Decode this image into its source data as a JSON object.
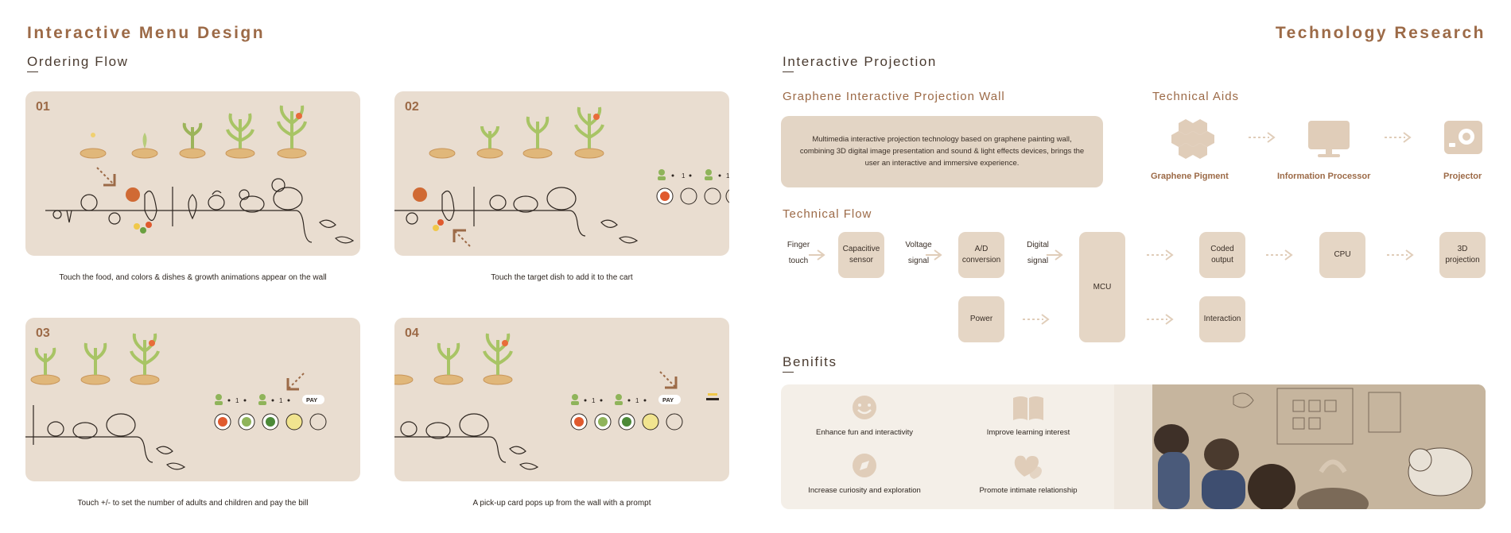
{
  "header": {
    "left_title": "Interactive Menu Design",
    "right_title": "Technology Research"
  },
  "ordering": {
    "title": "Ordering Flow",
    "steps": [
      {
        "num": "01",
        "caption": "Touch the food, and colors & dishes & growth animations appear on the wall"
      },
      {
        "num": "02",
        "caption": "Touch the target dish to add it to the cart"
      },
      {
        "num": "03",
        "caption": "Touch +/- to set the number of adults and children and pay the bill"
      },
      {
        "num": "04",
        "caption": "A pick-up card pops up from the wall with a prompt"
      }
    ],
    "counter_value": "1",
    "pay_label": "PAY"
  },
  "projection": {
    "title": "Interactive Projection",
    "wall_title": "Graphene Interactive Projection Wall",
    "wall_desc": "Multimedia interactive projection technology based on graphene painting wall, combining 3D digital image presentation and sound & light effects devices, brings the user an interactive and immersive experience.",
    "aids_title": "Technical Aids",
    "aids": [
      {
        "label": "Graphene Pigment",
        "icon": "hexagon-cluster-icon"
      },
      {
        "label": "Information Processor",
        "icon": "monitor-icon"
      },
      {
        "label": "Projector",
        "icon": "projector-icon"
      }
    ]
  },
  "flow": {
    "title": "Technical Flow",
    "finger_touch": [
      "Finger",
      "touch"
    ],
    "capacitive": "Capacitive sensor",
    "voltage": [
      "Voltage",
      "signal"
    ],
    "ad": "A/D conversion",
    "digital": [
      "Digital",
      "signal"
    ],
    "power": "Power",
    "mcu": "MCU",
    "coded": "Coded output",
    "interaction": "Interaction",
    "cpu": "CPU",
    "projection3d": "3D projection"
  },
  "benefits": {
    "title": "Benifits",
    "items": [
      {
        "label": "Enhance fun and interactivity",
        "icon": "smile-icon"
      },
      {
        "label": "Improve learning interest",
        "icon": "book-icon"
      },
      {
        "label": "Increase curiosity and exploration",
        "icon": "compass-icon"
      },
      {
        "label": "Promote intimate relationship",
        "icon": "hearts-icon"
      }
    ]
  },
  "colors": {
    "accent": "#9c6a47",
    "card_bg": "#e9ddd0",
    "box_bg": "#e5d6c5",
    "icon": "#e0cdb9"
  }
}
